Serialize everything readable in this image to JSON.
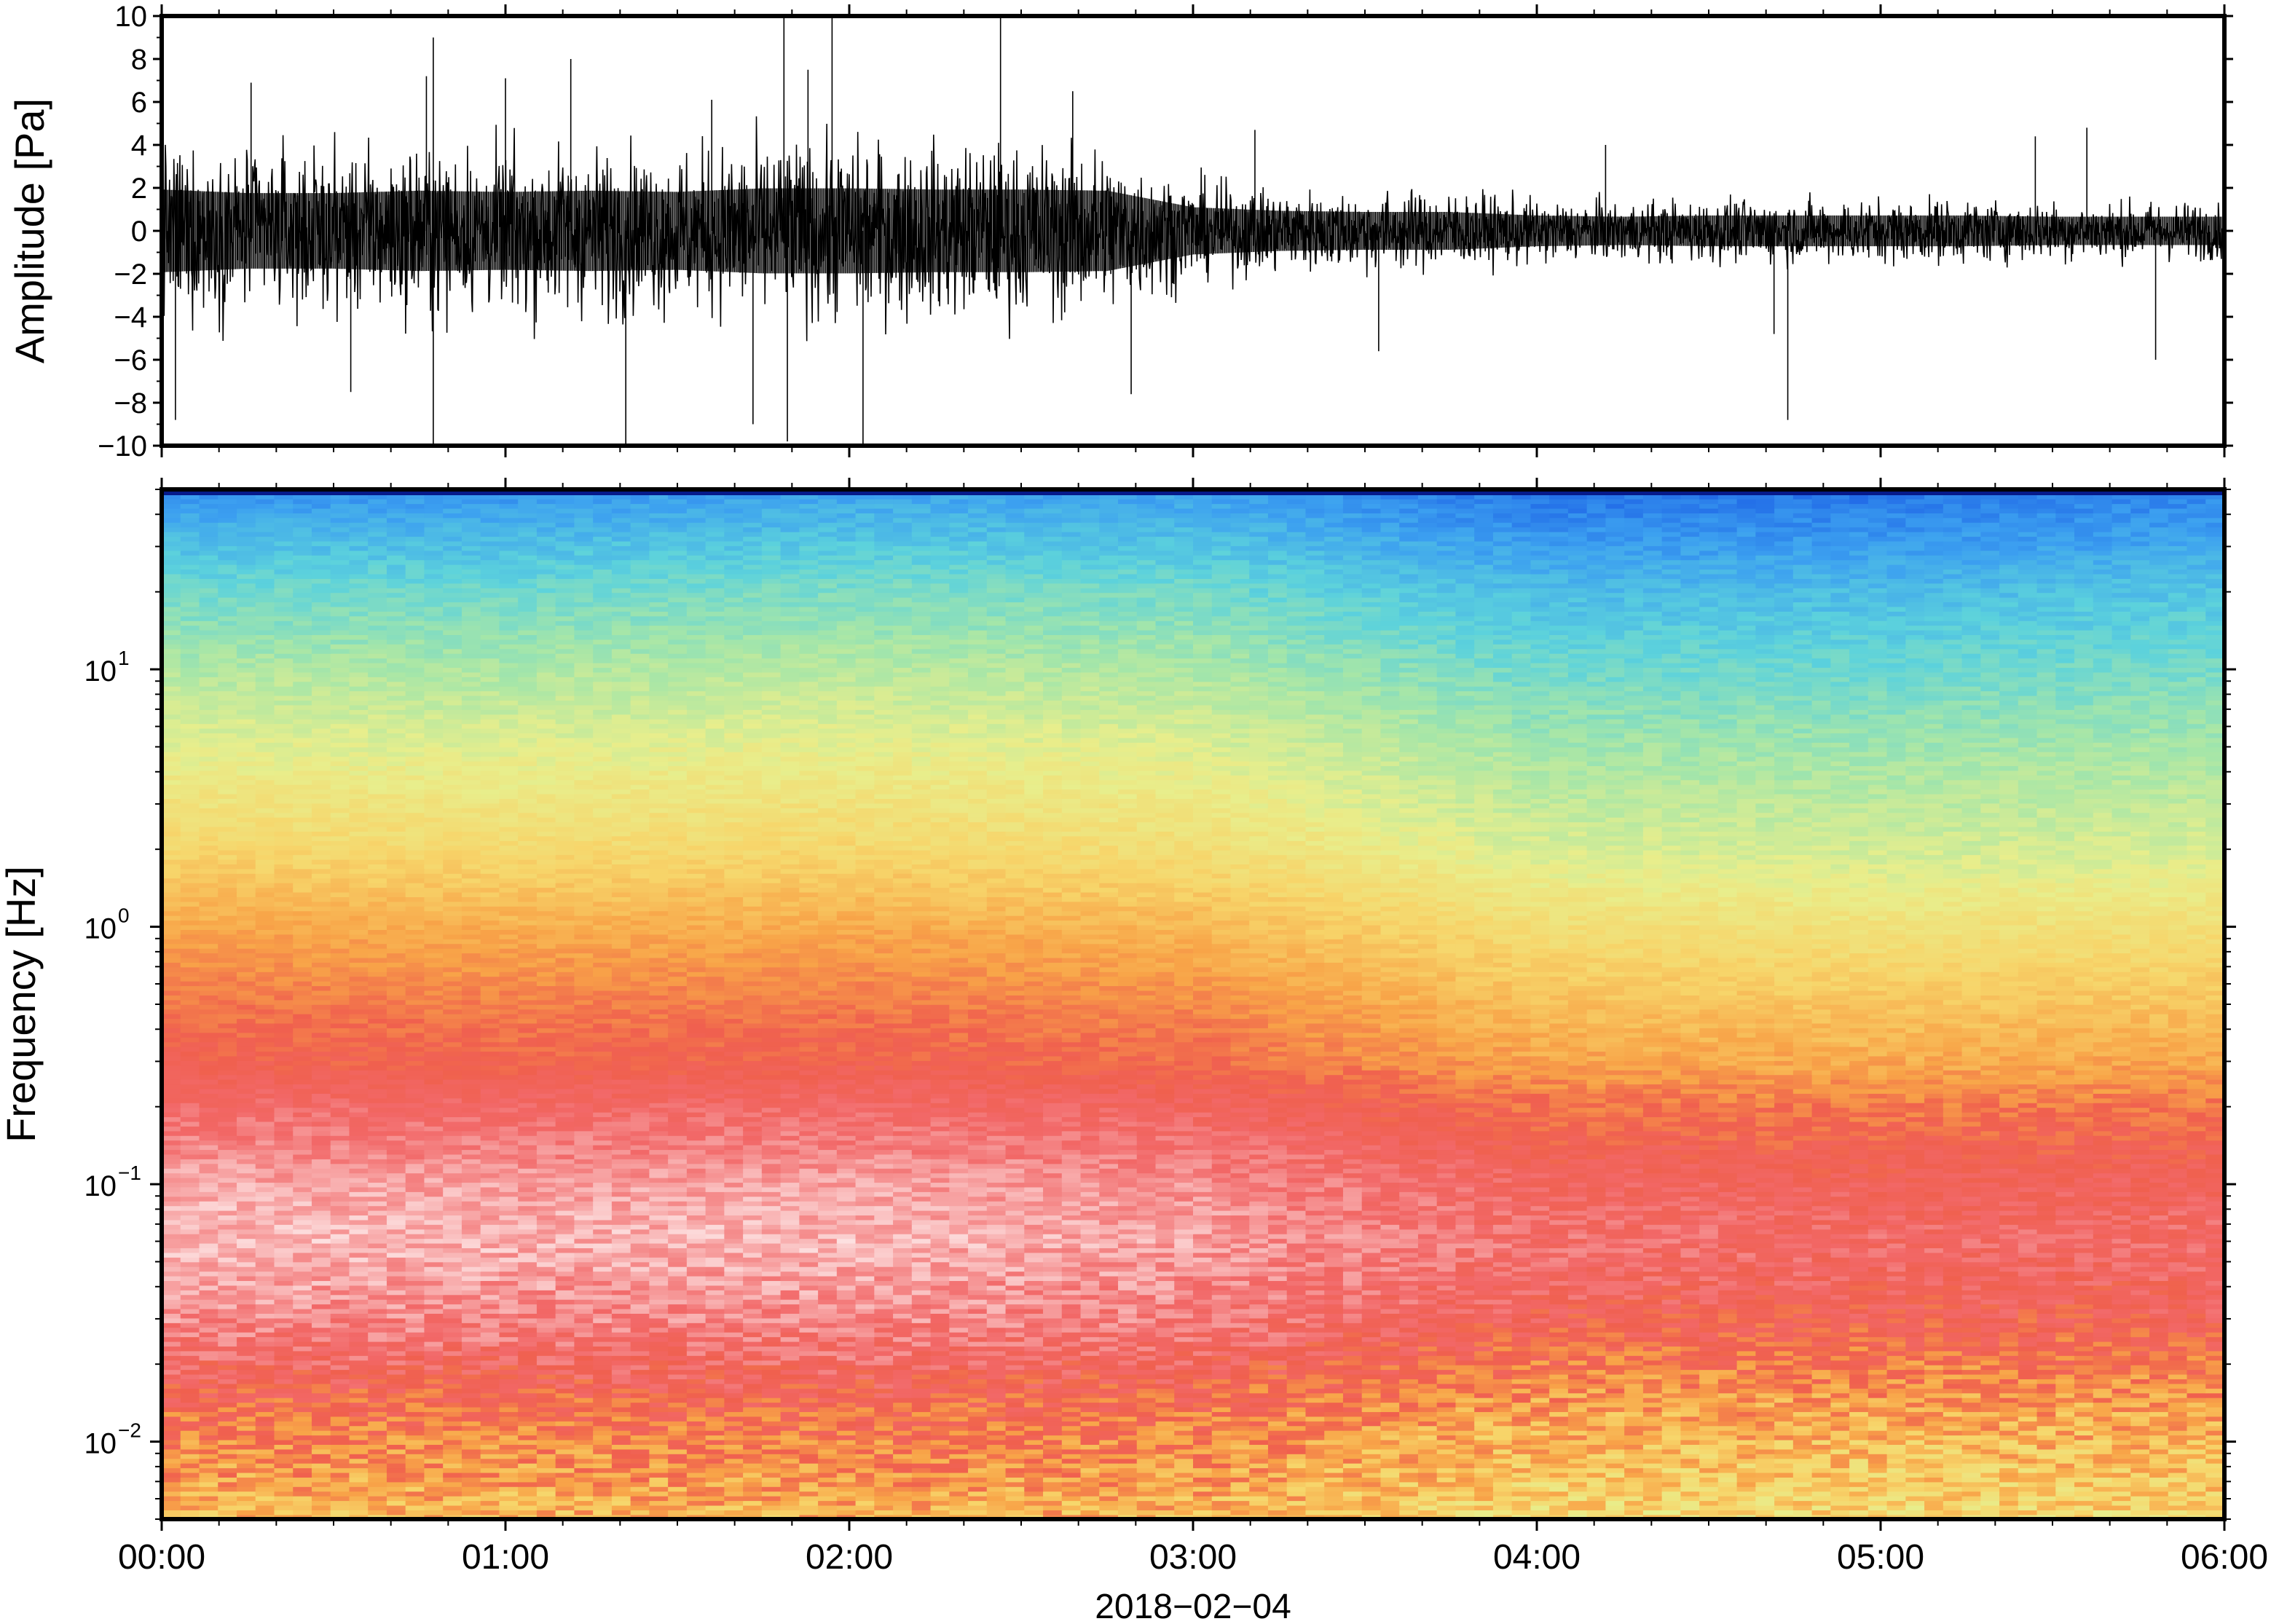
{
  "chart_data": [
    {
      "type": "line",
      "ylabel": "Amplitude [Pa]",
      "ylim": [
        -10,
        10
      ],
      "yticks": [
        {
          "value": 10,
          "label": "10"
        },
        {
          "value": 8,
          "label": "8"
        },
        {
          "value": 6,
          "label": "6"
        },
        {
          "value": 4,
          "label": "4"
        },
        {
          "value": 2,
          "label": "2"
        },
        {
          "value": 0,
          "label": "0"
        },
        {
          "value": -2,
          "label": "−2"
        },
        {
          "value": -4,
          "label": "−4"
        },
        {
          "value": -6,
          "label": "−6"
        },
        {
          "value": -8,
          "label": "−8"
        },
        {
          "value": -10,
          "label": "−10"
        }
      ],
      "xlim": [
        "00:00",
        "06:00"
      ],
      "envelope": {
        "x_hours": [
          0,
          0.25,
          0.5,
          0.75,
          1,
          1.25,
          1.5,
          1.75,
          2,
          2.25,
          2.5,
          2.75,
          3,
          3.25,
          3.5,
          3.75,
          4,
          4.25,
          4.5,
          4.75,
          5,
          5.25,
          5.5,
          5.75,
          6
        ],
        "amplitude": [
          3.5,
          3.2,
          3.2,
          3.4,
          3.3,
          3.4,
          3.3,
          3.6,
          3.6,
          3.5,
          3.5,
          3.4,
          2.0,
          1.7,
          1.6,
          1.6,
          1.3,
          1.2,
          1.3,
          1.3,
          1.3,
          1.3,
          1.2,
          1.2,
          1.2
        ]
      },
      "spikes": [
        {
          "x": 0.04,
          "y": -8.8
        },
        {
          "x": 0.26,
          "y": 6.9
        },
        {
          "x": 0.55,
          "y": -7.5
        },
        {
          "x": 0.77,
          "y": 7.2
        },
        {
          "x": 0.79,
          "y": -10.0
        },
        {
          "x": 0.79,
          "y": 9.0
        },
        {
          "x": 1.0,
          "y": 7.1
        },
        {
          "x": 1.19,
          "y": 8.0
        },
        {
          "x": 1.35,
          "y": -10.0
        },
        {
          "x": 1.6,
          "y": 6.1
        },
        {
          "x": 1.72,
          "y": -9.0
        },
        {
          "x": 1.81,
          "y": 10.0
        },
        {
          "x": 1.82,
          "y": -9.8
        },
        {
          "x": 1.88,
          "y": 7.5
        },
        {
          "x": 1.95,
          "y": 10.0
        },
        {
          "x": 2.04,
          "y": -10.0
        },
        {
          "x": 2.44,
          "y": 10.0
        },
        {
          "x": 2.65,
          "y": 6.5
        },
        {
          "x": 2.82,
          "y": -7.6
        },
        {
          "x": 3.18,
          "y": 4.7
        },
        {
          "x": 3.54,
          "y": -5.6
        },
        {
          "x": 4.2,
          "y": 4.0
        },
        {
          "x": 4.69,
          "y": -4.8
        },
        {
          "x": 4.73,
          "y": -8.8
        },
        {
          "x": 5.45,
          "y": 4.4
        },
        {
          "x": 5.8,
          "y": -6.0
        },
        {
          "x": 5.6,
          "y": 4.8
        }
      ]
    },
    {
      "type": "heatmap",
      "ylabel": "Frequency [Hz]",
      "yscale": "log",
      "ylim": [
        0.005,
        50
      ],
      "yticks": [
        {
          "value": 10,
          "base": "10",
          "exp": "1"
        },
        {
          "value": 1,
          "base": "10",
          "exp": "0"
        },
        {
          "value": 0.1,
          "base": "10",
          "exp": "−1"
        },
        {
          "value": 0.01,
          "base": "10",
          "exp": "−2"
        }
      ],
      "xlim": [
        "00:00",
        "06:00"
      ],
      "xticks": [
        "00:00",
        "01:00",
        "02:00",
        "03:00",
        "04:00",
        "05:00",
        "06:00"
      ],
      "xlabel": "2018−02−04",
      "colormap": [
        "#0a2ab0",
        "#1e64e6",
        "#3ca0f0",
        "#5cd2dc",
        "#a6e6a8",
        "#e8ee8c",
        "#f7d56a",
        "#f8a448",
        "#f0604e",
        "#f26868",
        "#f7a2a2",
        "#fde2e2"
      ],
      "power_profile": {
        "freq_hz": [
          50,
          30,
          20,
          10,
          5,
          2,
          1,
          0.5,
          0.3,
          0.2,
          0.1,
          0.06,
          0.03,
          0.015,
          0.01,
          0.005
        ],
        "level_start": [
          0.14,
          0.22,
          0.28,
          0.36,
          0.43,
          0.52,
          0.61,
          0.68,
          0.72,
          0.8,
          0.9,
          0.93,
          0.86,
          0.72,
          0.66,
          0.58
        ],
        "level_end": [
          0.16,
          0.22,
          0.27,
          0.33,
          0.39,
          0.45,
          0.53,
          0.6,
          0.65,
          0.72,
          0.8,
          0.83,
          0.78,
          0.68,
          0.63,
          0.56
        ]
      },
      "time_shift": {
        "x_hours": [
          0,
          1,
          2,
          3,
          4,
          5,
          6
        ],
        "offset": [
          0.02,
          0.02,
          0.04,
          0.03,
          -0.04,
          -0.04,
          -0.02
        ]
      }
    }
  ]
}
